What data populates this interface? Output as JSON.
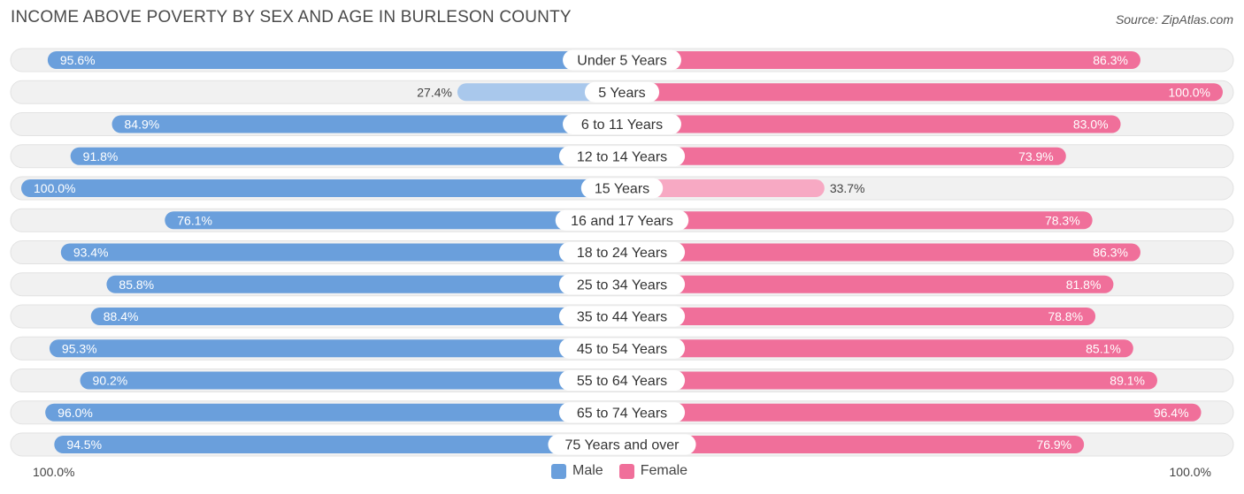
{
  "title": "INCOME ABOVE POVERTY BY SEX AND AGE IN BURLESON COUNTY",
  "source": "Source: ZipAtlas.com",
  "axis": {
    "left_label": "100.0%",
    "right_label": "100.0%"
  },
  "legend": [
    {
      "label": "Male",
      "color": "#6a9fdc"
    },
    {
      "label": "Female",
      "color": "#f06f9a"
    }
  ],
  "chart_data": {
    "type": "bar",
    "orientation": "horizontal-diverging",
    "categories": [
      "Under 5 Years",
      "5 Years",
      "6 to 11 Years",
      "12 to 14 Years",
      "15 Years",
      "16 and 17 Years",
      "18 to 24 Years",
      "25 to 34 Years",
      "35 to 44 Years",
      "45 to 54 Years",
      "55 to 64 Years",
      "65 to 74 Years",
      "75 Years and over"
    ],
    "series": [
      {
        "name": "Male",
        "values": [
          95.6,
          27.4,
          84.9,
          91.8,
          100.0,
          76.1,
          93.4,
          85.8,
          88.4,
          95.3,
          90.2,
          96.0,
          94.5
        ]
      },
      {
        "name": "Female",
        "values": [
          86.3,
          100.0,
          83.0,
          73.9,
          33.7,
          78.3,
          86.3,
          81.8,
          78.8,
          85.1,
          89.1,
          96.4,
          76.9
        ]
      }
    ],
    "value_labels": {
      "Male": [
        "95.6%",
        "27.4%",
        "84.9%",
        "91.8%",
        "100.0%",
        "76.1%",
        "93.4%",
        "85.8%",
        "88.4%",
        "95.3%",
        "90.2%",
        "96.0%",
        "94.5%"
      ],
      "Female": [
        "86.3%",
        "100.0%",
        "83.0%",
        "73.9%",
        "33.7%",
        "78.3%",
        "86.3%",
        "81.8%",
        "78.8%",
        "85.1%",
        "89.1%",
        "96.4%",
        "76.9%"
      ]
    },
    "xlim": [
      0,
      100
    ],
    "colors": {
      "male_strong": "#6a9fdc",
      "male_light": "#a9c8ec",
      "female_strong": "#f06f9a",
      "female_light": "#f7a9c3",
      "row_bg": "#eeeeee"
    }
  }
}
